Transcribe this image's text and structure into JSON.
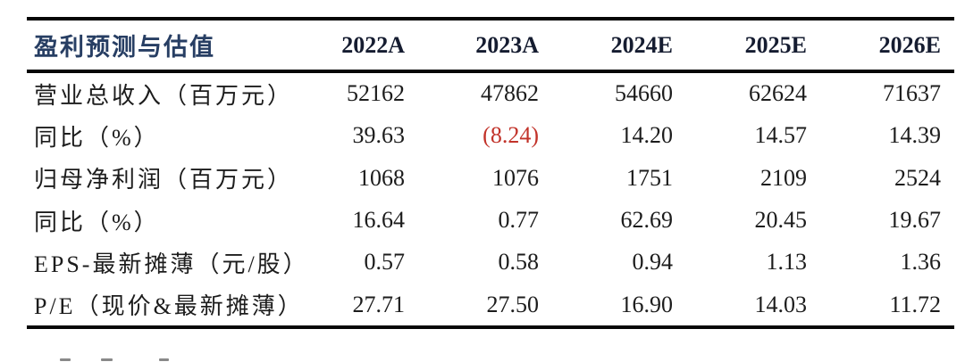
{
  "theme": {
    "background": "#ffffff",
    "title_color": "#273e63",
    "year_header_color": "#151c30",
    "body_text_color": "#1c1c1c",
    "negative_value_color": "#c2332a",
    "rule_color": "#060606"
  },
  "table": {
    "title": "盈利预测与估值",
    "columns": [
      "2022A",
      "2023A",
      "2024E",
      "2025E",
      "2026E"
    ],
    "rows": [
      {
        "label": "营业总收入（百万元）",
        "values": [
          "52162",
          "47862",
          "54660",
          "62624",
          "71637"
        ]
      },
      {
        "label": "同比（%）",
        "values": [
          "39.63",
          "(8.24)",
          "14.20",
          "14.57",
          "14.39"
        ]
      },
      {
        "label": "归母净利润（百万元）",
        "values": [
          "1068",
          "1076",
          "1751",
          "2109",
          "2524"
        ]
      },
      {
        "label": "同比（%）",
        "values": [
          "16.64",
          "0.77",
          "62.69",
          "20.45",
          "19.67"
        ]
      },
      {
        "label": "EPS-最新摊薄（元/股）",
        "values": [
          "0.57",
          "0.58",
          "0.94",
          "1.13",
          "1.36"
        ]
      },
      {
        "label": "P/E（现价&最新摊薄）",
        "values": [
          "27.71",
          "27.50",
          "16.90",
          "14.03",
          "11.72"
        ]
      }
    ]
  }
}
